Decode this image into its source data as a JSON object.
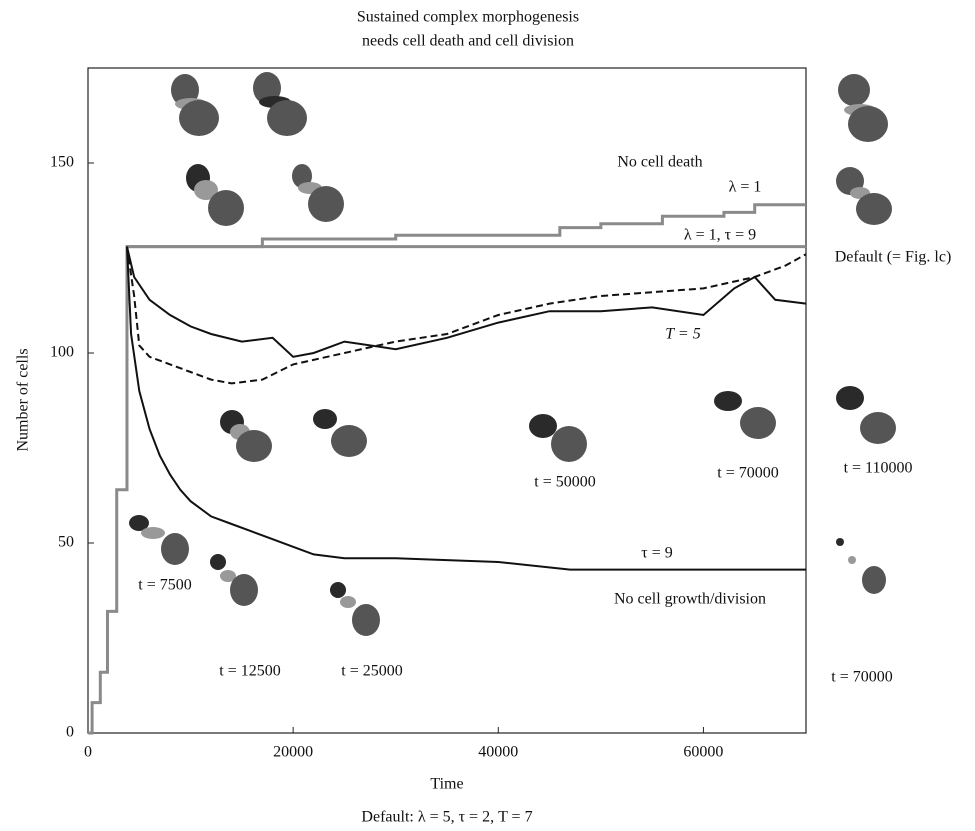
{
  "chart_data": {
    "type": "line",
    "title": "Sustained complex morphogenesis",
    "subtitle": "needs cell death and cell division",
    "x_label": "Time",
    "y_label": "Number of cells",
    "footnote": "Default: λ = 5, τ = 2, T = 7",
    "xlim": [
      0,
      70000
    ],
    "ylim": [
      0,
      175
    ],
    "xticks": [
      0,
      20000,
      40000,
      60000
    ],
    "yticks": [
      0,
      50,
      100,
      150
    ],
    "series": [
      {
        "name": "λ = 1",
        "color": "#8a8a8a",
        "dashed": false,
        "x": [
          0,
          400,
          400,
          1200,
          1200,
          1900,
          1900,
          2800,
          2800,
          3800,
          3800,
          17000,
          17000,
          30000,
          30000,
          46000,
          46000,
          50000,
          50000,
          56000,
          56000,
          62000,
          62000,
          65000,
          65000,
          70000
        ],
        "values": [
          0,
          0,
          8,
          8,
          16,
          16,
          32,
          32,
          64,
          64,
          128,
          128,
          130,
          130,
          131,
          131,
          133,
          133,
          134,
          134,
          136,
          136,
          137,
          137,
          139,
          139
        ]
      },
      {
        "name": "λ = 1, τ = 9",
        "color": "#8a8a8a",
        "dashed": false,
        "x": [
          3800,
          70000
        ],
        "values": [
          128,
          128
        ]
      },
      {
        "name": "Default (= Fig. lc)",
        "color": "#111111",
        "dashed": true,
        "x": [
          3800,
          4500,
          5000,
          6000,
          8000,
          10000,
          12000,
          14000,
          17000,
          20000,
          25000,
          30000,
          35000,
          40000,
          45000,
          50000,
          55000,
          60000,
          65000,
          68000,
          70000
        ],
        "values": [
          128,
          115,
          102,
          99,
          97,
          95,
          93,
          92,
          93,
          97,
          100,
          103,
          105,
          110,
          113,
          115,
          116,
          117,
          120,
          123,
          126
        ]
      },
      {
        "name": "T = 5",
        "color": "#111111",
        "dashed": false,
        "x": [
          3800,
          4500,
          6000,
          8000,
          10000,
          12000,
          15000,
          18000,
          20000,
          22000,
          25000,
          30000,
          35000,
          40000,
          45000,
          50000,
          55000,
          60000,
          63000,
          65000,
          67000,
          70000
        ],
        "values": [
          128,
          120,
          114,
          110,
          107,
          105,
          103,
          104,
          99,
          100,
          103,
          101,
          104,
          108,
          111,
          111,
          112,
          110,
          117,
          120,
          114,
          113
        ]
      },
      {
        "name": "τ = 9",
        "color": "#111111",
        "dashed": false,
        "x": [
          3800,
          4200,
          5000,
          6000,
          7000,
          8000,
          9000,
          10000,
          12000,
          14000,
          16000,
          18000,
          20000,
          22000,
          25000,
          30000,
          40000,
          47000,
          70000
        ],
        "values": [
          128,
          105,
          90,
          80,
          73,
          68,
          64,
          61,
          57,
          55,
          53,
          51,
          49,
          47,
          46,
          46,
          45,
          43,
          43
        ]
      }
    ],
    "annotations": [
      "No cell death",
      "No cell growth/division",
      "t = 7500",
      "t = 12500",
      "t = 25000",
      "t = 50000",
      "t = 70000",
      "t = 110000",
      "t = 70000"
    ]
  }
}
